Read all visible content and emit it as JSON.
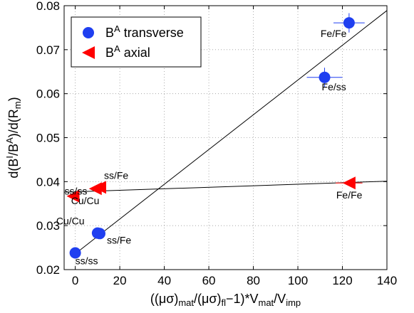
{
  "chart_data": {
    "type": "scatter",
    "xlim": [
      -5,
      140
    ],
    "ylim": [
      0.02,
      0.08
    ],
    "xticks": [
      0,
      20,
      40,
      60,
      80,
      100,
      120,
      140
    ],
    "yticks": [
      0.02,
      0.03,
      0.04,
      0.05,
      0.06,
      0.07,
      0.08
    ],
    "xtick_labels": [
      "0",
      "20",
      "40",
      "60",
      "80",
      "100",
      "120",
      "140"
    ],
    "ytick_labels": [
      "0.02",
      "0.03",
      "0.04",
      "0.05",
      "0.06",
      "0.07",
      "0.08"
    ],
    "grid": true,
    "legend_position": "top-left",
    "ylabel": {
      "prefix": "d(B",
      "sup1": "I",
      "mid": "/B",
      "sup2": "A",
      "mid2": ")/d(R",
      "sub": "m",
      "suffix": ")"
    },
    "xlabel": {
      "p1": "((μσ)",
      "s1": "mat",
      "p2": "/(μσ)",
      "s2": "fl",
      "p3": "−1)*V",
      "s3": "mat",
      "p4": "/V",
      "s4": "imp"
    },
    "series": [
      {
        "name": "B",
        "name_sup": "A",
        "name_suffix": " transverse",
        "marker": "circle",
        "color": "#1f3ff0",
        "points": [
          {
            "x": 123,
            "y": 0.0761,
            "xerr": 7,
            "yerr": 0.0022,
            "label": "Fe/Fe"
          },
          {
            "x": 112,
            "y": 0.0637,
            "xerr": 8,
            "yerr": 0.0022,
            "label": "Fe/ss"
          },
          {
            "x": 11,
            "y": 0.0282,
            "xerr": 1.5,
            "yerr": 0.0005,
            "label": "ss/Fe"
          },
          {
            "x": 10,
            "y": 0.0283,
            "xerr": 1.5,
            "yerr": 0.0005,
            "label": "Cu/Cu"
          },
          {
            "x": 0,
            "y": 0.0238,
            "xerr": 1,
            "yerr": 0.0004,
            "label": "ss/ss"
          }
        ],
        "fit": {
          "x0": 0,
          "y0": 0.0236,
          "x1": 140,
          "y1": 0.0789
        }
      },
      {
        "name": "B",
        "name_sup": "A",
        "name_suffix": " axial",
        "marker": "triangle-left",
        "color": "#ff0000",
        "points": [
          {
            "x": 123,
            "y": 0.0397,
            "xerr": 6,
            "yerr": 0.0003,
            "label": "Fe/Fe"
          },
          {
            "x": 11,
            "y": 0.0387,
            "xerr": 1.5,
            "yerr": 0.0003,
            "label": "ss/Fe"
          },
          {
            "x": 9,
            "y": 0.0384,
            "xerr": 1.5,
            "yerr": 0.0003,
            "label": "Cu/Cu"
          },
          {
            "x": -1,
            "y": 0.0367,
            "xerr": 1,
            "yerr": 0.0003,
            "label": "ss/ss"
          }
        ],
        "fit": {
          "x0": -5,
          "y0": 0.0376,
          "x1": 140,
          "y1": 0.0401
        }
      }
    ]
  }
}
